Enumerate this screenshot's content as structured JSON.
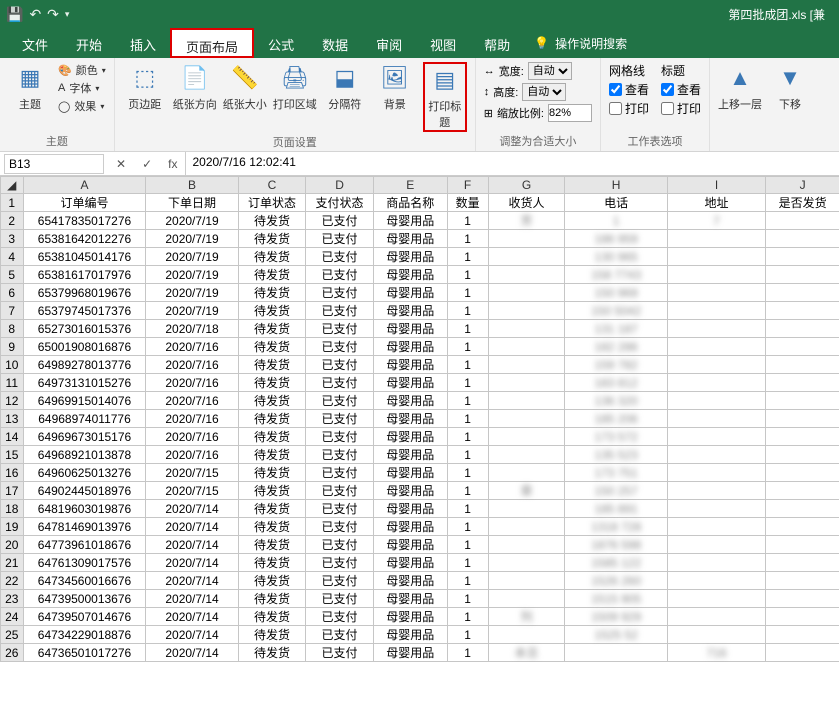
{
  "titlebar": {
    "filename": "第四批成团.xls [兼"
  },
  "tabs": {
    "items": [
      "文件",
      "开始",
      "插入",
      "页面布局",
      "公式",
      "数据",
      "审阅",
      "视图",
      "帮助"
    ],
    "active": 3,
    "search_label": "操作说明搜索"
  },
  "ribbon": {
    "theme": {
      "color": "颜色",
      "font": "字体",
      "effect": "效果",
      "theme": "主题",
      "group": "主题"
    },
    "page_setup": {
      "margin": "页边距",
      "orient": "纸张方向",
      "size": "纸张大小",
      "area": "打印区域",
      "breaks": "分隔符",
      "bg": "背景",
      "titles": "打印标题",
      "group": "页面设置"
    },
    "scale": {
      "width": "宽度:",
      "height": "高度:",
      "scale": "缩放比例:",
      "auto": "自动",
      "pct": "82%",
      "group": "调整为合适大小"
    },
    "sheet_opts": {
      "gridlines": "网格线",
      "headings": "标题",
      "view": "查看",
      "print": "打印",
      "group": "工作表选项"
    },
    "arrange": {
      "up": "上移一层",
      "down": "下移"
    }
  },
  "fbar": {
    "name": "B13",
    "fx": "fx",
    "formula": "2020/7/16 12:02:41"
  },
  "columns": [
    "A",
    "B",
    "C",
    "D",
    "E",
    "F",
    "G",
    "H",
    "I",
    "J"
  ],
  "headers": [
    "订单编号",
    "下单日期",
    "订单状态",
    "支付状态",
    "商品名称",
    "数量",
    "收货人",
    "电话",
    "地址",
    "是否发货"
  ],
  "rows": [
    [
      "65417835017276",
      "2020/7/19",
      "待发货",
      "已支付",
      "母婴用品",
      "1",
      "芳",
      "1",
      "7",
      ""
    ],
    [
      "65381642012276",
      "2020/7/19",
      "待发货",
      "已支付",
      "母婴用品",
      "1",
      "",
      "186         959",
      "",
      " "
    ],
    [
      "65381045014176",
      "2020/7/19",
      "待发货",
      "已支付",
      "母婴用品",
      "1",
      "",
      "130         965",
      "",
      ""
    ],
    [
      "65381617017976",
      "2020/7/19",
      "待发货",
      "已支付",
      "母婴用品",
      "1",
      "",
      "158       7743",
      "",
      ""
    ],
    [
      "65379968019676",
      "2020/7/19",
      "待发货",
      "已支付",
      "母婴用品",
      "1",
      "",
      "150         969",
      "",
      ""
    ],
    [
      "65379745017376",
      "2020/7/19",
      "待发货",
      "已支付",
      "母婴用品",
      "1",
      "",
      "150       5042",
      "",
      ""
    ],
    [
      "65273016015376",
      "2020/7/18",
      "待发货",
      "已支付",
      "母婴用品",
      "1",
      "",
      "131         187",
      "",
      ""
    ],
    [
      "65001908016876",
      "2020/7/16",
      "待发货",
      "已支付",
      "母婴用品",
      "1",
      "",
      "182         286",
      "",
      ""
    ],
    [
      "64989278013776",
      "2020/7/16",
      "待发货",
      "已支付",
      "母婴用品",
      "1",
      "",
      "159         782",
      "",
      ""
    ],
    [
      "64973131015276",
      "2020/7/16",
      "待发货",
      "已支付",
      "母婴用品",
      "1",
      "",
      "183         812",
      "",
      ""
    ],
    [
      "64969915014076",
      "2020/7/16",
      "待发货",
      "已支付",
      "母婴用品",
      "1",
      "",
      "136         320",
      "",
      ""
    ],
    [
      "64968974011776",
      "2020/7/16",
      "待发货",
      "已支付",
      "母婴用品",
      "1",
      "",
      "185         206",
      "",
      ""
    ],
    [
      "64969673015176",
      "2020/7/16",
      "待发货",
      "已支付",
      "母婴用品",
      "1",
      "",
      "173         572",
      "",
      ""
    ],
    [
      "64968921013878",
      "2020/7/16",
      "待发货",
      "已支付",
      "母婴用品",
      "1",
      "",
      "135         523",
      "",
      ""
    ],
    [
      "64960625013276",
      "2020/7/15",
      "待发货",
      "已支付",
      "母婴用品",
      "1",
      "",
      "173         751",
      "",
      ""
    ],
    [
      "64902445018976",
      "2020/7/15",
      "待发货",
      "已支付",
      "母婴用品",
      "1",
      "章",
      "150         257",
      "",
      " "
    ],
    [
      "64819603019876",
      "2020/7/14",
      "待发货",
      "已支付",
      "母婴用品",
      "1",
      "",
      "185         891",
      "",
      ""
    ],
    [
      "64781469013976",
      "2020/7/14",
      "待发货",
      "已支付",
      "母婴用品",
      "1",
      "",
      "1318         728",
      "",
      ""
    ],
    [
      "64773961018676",
      "2020/7/14",
      "待发货",
      "已支付",
      "母婴用品",
      "1",
      "",
      "1876         598",
      "",
      ""
    ],
    [
      "64761309017576",
      "2020/7/14",
      "待发货",
      "已支付",
      "母婴用品",
      "1",
      "",
      "1585         122",
      "",
      ""
    ],
    [
      "64734560016676",
      "2020/7/14",
      "待发货",
      "已支付",
      "母婴用品",
      "1",
      "",
      "1526         260",
      "",
      ""
    ],
    [
      "64739500013676",
      "2020/7/14",
      "待发货",
      "已支付",
      "母婴用品",
      "1",
      "",
      "1515         905",
      "",
      ""
    ],
    [
      "64739507014676",
      "2020/7/14",
      "待发货",
      "已支付",
      "母婴用品",
      "1",
      "列",
      "1509         929",
      "",
      ""
    ],
    [
      "64734229018876",
      "2020/7/14",
      "待发货",
      "已支付",
      "母婴用品",
      "1",
      "",
      "1525         52",
      "",
      ""
    ],
    [
      "64736501017276",
      "2020/7/14",
      "待发货",
      "已支付",
      "母婴用品",
      "1",
      "本旦",
      "",
      "716",
      ""
    ]
  ]
}
